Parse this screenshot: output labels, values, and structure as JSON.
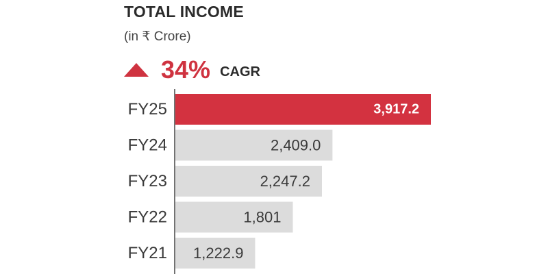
{
  "header": {
    "title": "TOTAL INCOME",
    "subtitle": "(in ₹ Crore)",
    "cagr_value": "34%",
    "cagr_label": "CAGR",
    "arrow_icon": "triangle-up-icon"
  },
  "colors": {
    "highlight": "#d33240",
    "bar": "#dcdcdc",
    "axis": "#444444",
    "highlight_text": "#ffffff",
    "bar_text": "#3a3a3a",
    "accent_text": "#cf3340"
  },
  "chart_data": {
    "type": "bar",
    "orientation": "horizontal",
    "title": "TOTAL INCOME",
    "subtitle": "(in ₹ Crore)",
    "categories": [
      "FY25",
      "FY24",
      "FY23",
      "FY22",
      "FY21"
    ],
    "values": [
      3917.2,
      2409.0,
      2247.2,
      1801,
      1222.9
    ],
    "value_labels": [
      "3,917.2",
      "2,409.0",
      "2,247.2",
      "1,801",
      "1,222.9"
    ],
    "highlight_category": "FY25",
    "annotation": "34% CAGR",
    "xlim": [
      0,
      3917.2
    ],
    "grid": false,
    "legend": "none"
  }
}
